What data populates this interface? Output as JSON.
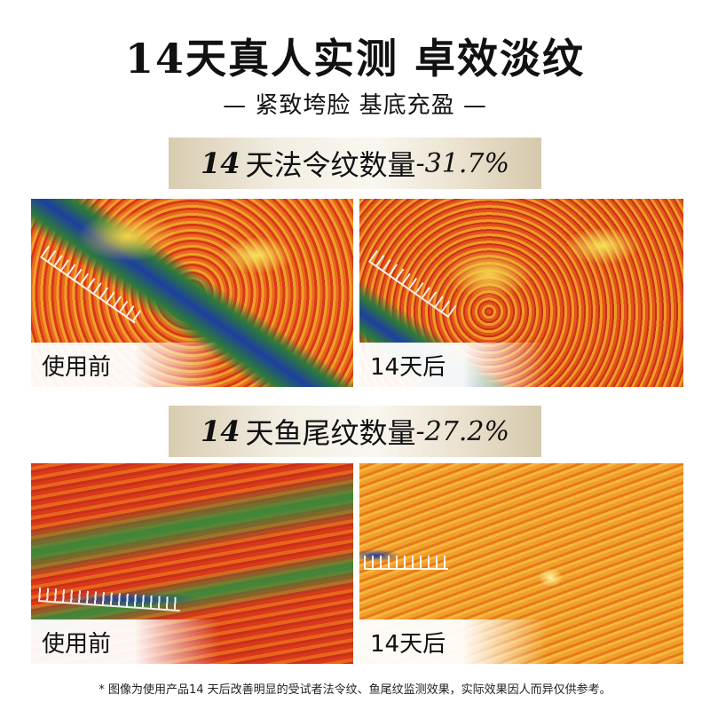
{
  "title": "14天真人实测 卓效淡纹",
  "subtitle": "— 紧致垮脸 基底充盈 —",
  "sections": [
    {
      "days": "14",
      "label": "天法令纹数量",
      "change": "-31.7%",
      "before_label": "使用前",
      "after_label": "14天后"
    },
    {
      "days": "14",
      "label": "天鱼尾纹数量",
      "change": "-27.2%",
      "before_label": "使用前",
      "after_label": "14天后"
    }
  ],
  "footnote": "* 图像为使用产品14 天后改善明显的受试者法令纹、鱼尾纹监测效果，实际效果因人而异仅供参考。"
}
